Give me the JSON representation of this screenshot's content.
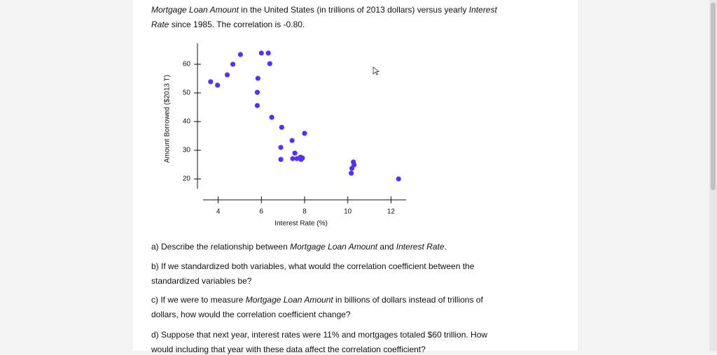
{
  "intro": [
    [
      "Mortgage Loan Amount",
      " in the United States (in trillions of 2013 dollars) versus yearly ",
      "Interest"
    ],
    [
      "Rate",
      " since 1985. The correlation is -0.80."
    ]
  ],
  "chart_data": {
    "type": "scatter",
    "x_label": "Interest Rate (%)",
    "y_label": "Amount Borrowed ($2013 T)",
    "color": "#5533ee",
    "series": [
      {
        "x": [
          3.65,
          3.97,
          4.42,
          4.68,
          5.03,
          5.84,
          5.81,
          5.81,
          6.0,
          6.32,
          6.39,
          6.48,
          6.94,
          6.9,
          6.9,
          7.42,
          7.55,
          7.45,
          7.65,
          7.81,
          7.84,
          7.9,
          8.0,
          10.26,
          10.29,
          10.19,
          10.16,
          12.35
        ],
        "values": [
          53.9,
          52.7,
          56.3,
          60.0,
          63.4,
          55.1,
          50.2,
          45.6,
          63.9,
          63.9,
          60.2,
          41.5,
          38.0,
          31.0,
          26.8,
          33.4,
          29.0,
          27.1,
          27.1,
          27.6,
          26.8,
          27.3,
          35.9,
          25.9,
          24.9,
          23.7,
          22.0,
          20.0
        ]
      }
    ],
    "xlim": [
      3.3,
      12.7
    ],
    "ylim": [
      16.6,
      67.3
    ],
    "xticks": [
      4,
      6,
      8,
      10,
      12
    ],
    "yticks": [
      20,
      30,
      40,
      50,
      60
    ]
  },
  "questions": [
    [
      [
        "a) Describe the relationship between ",
        "Mortgage Loan Amount",
        " and ",
        "Interest Rate",
        "."
      ]
    ],
    [
      [
        "b) If we standardized both variables, what would the correlation coefficient between the"
      ],
      [
        "standardized variables be?"
      ]
    ],
    [
      [
        "c) If we were to measure ",
        "Mortgage Loan Amount",
        " in billions of dollars instead of trillions of"
      ],
      [
        "dollars, how would the correlation coefficient change?"
      ]
    ],
    [
      [
        "d) Suppose that next year, interest rates were 11% and mortgages totaled $60 trillion. How"
      ],
      [
        "would including that year with these data affect the correlation coefficient?"
      ]
    ]
  ]
}
